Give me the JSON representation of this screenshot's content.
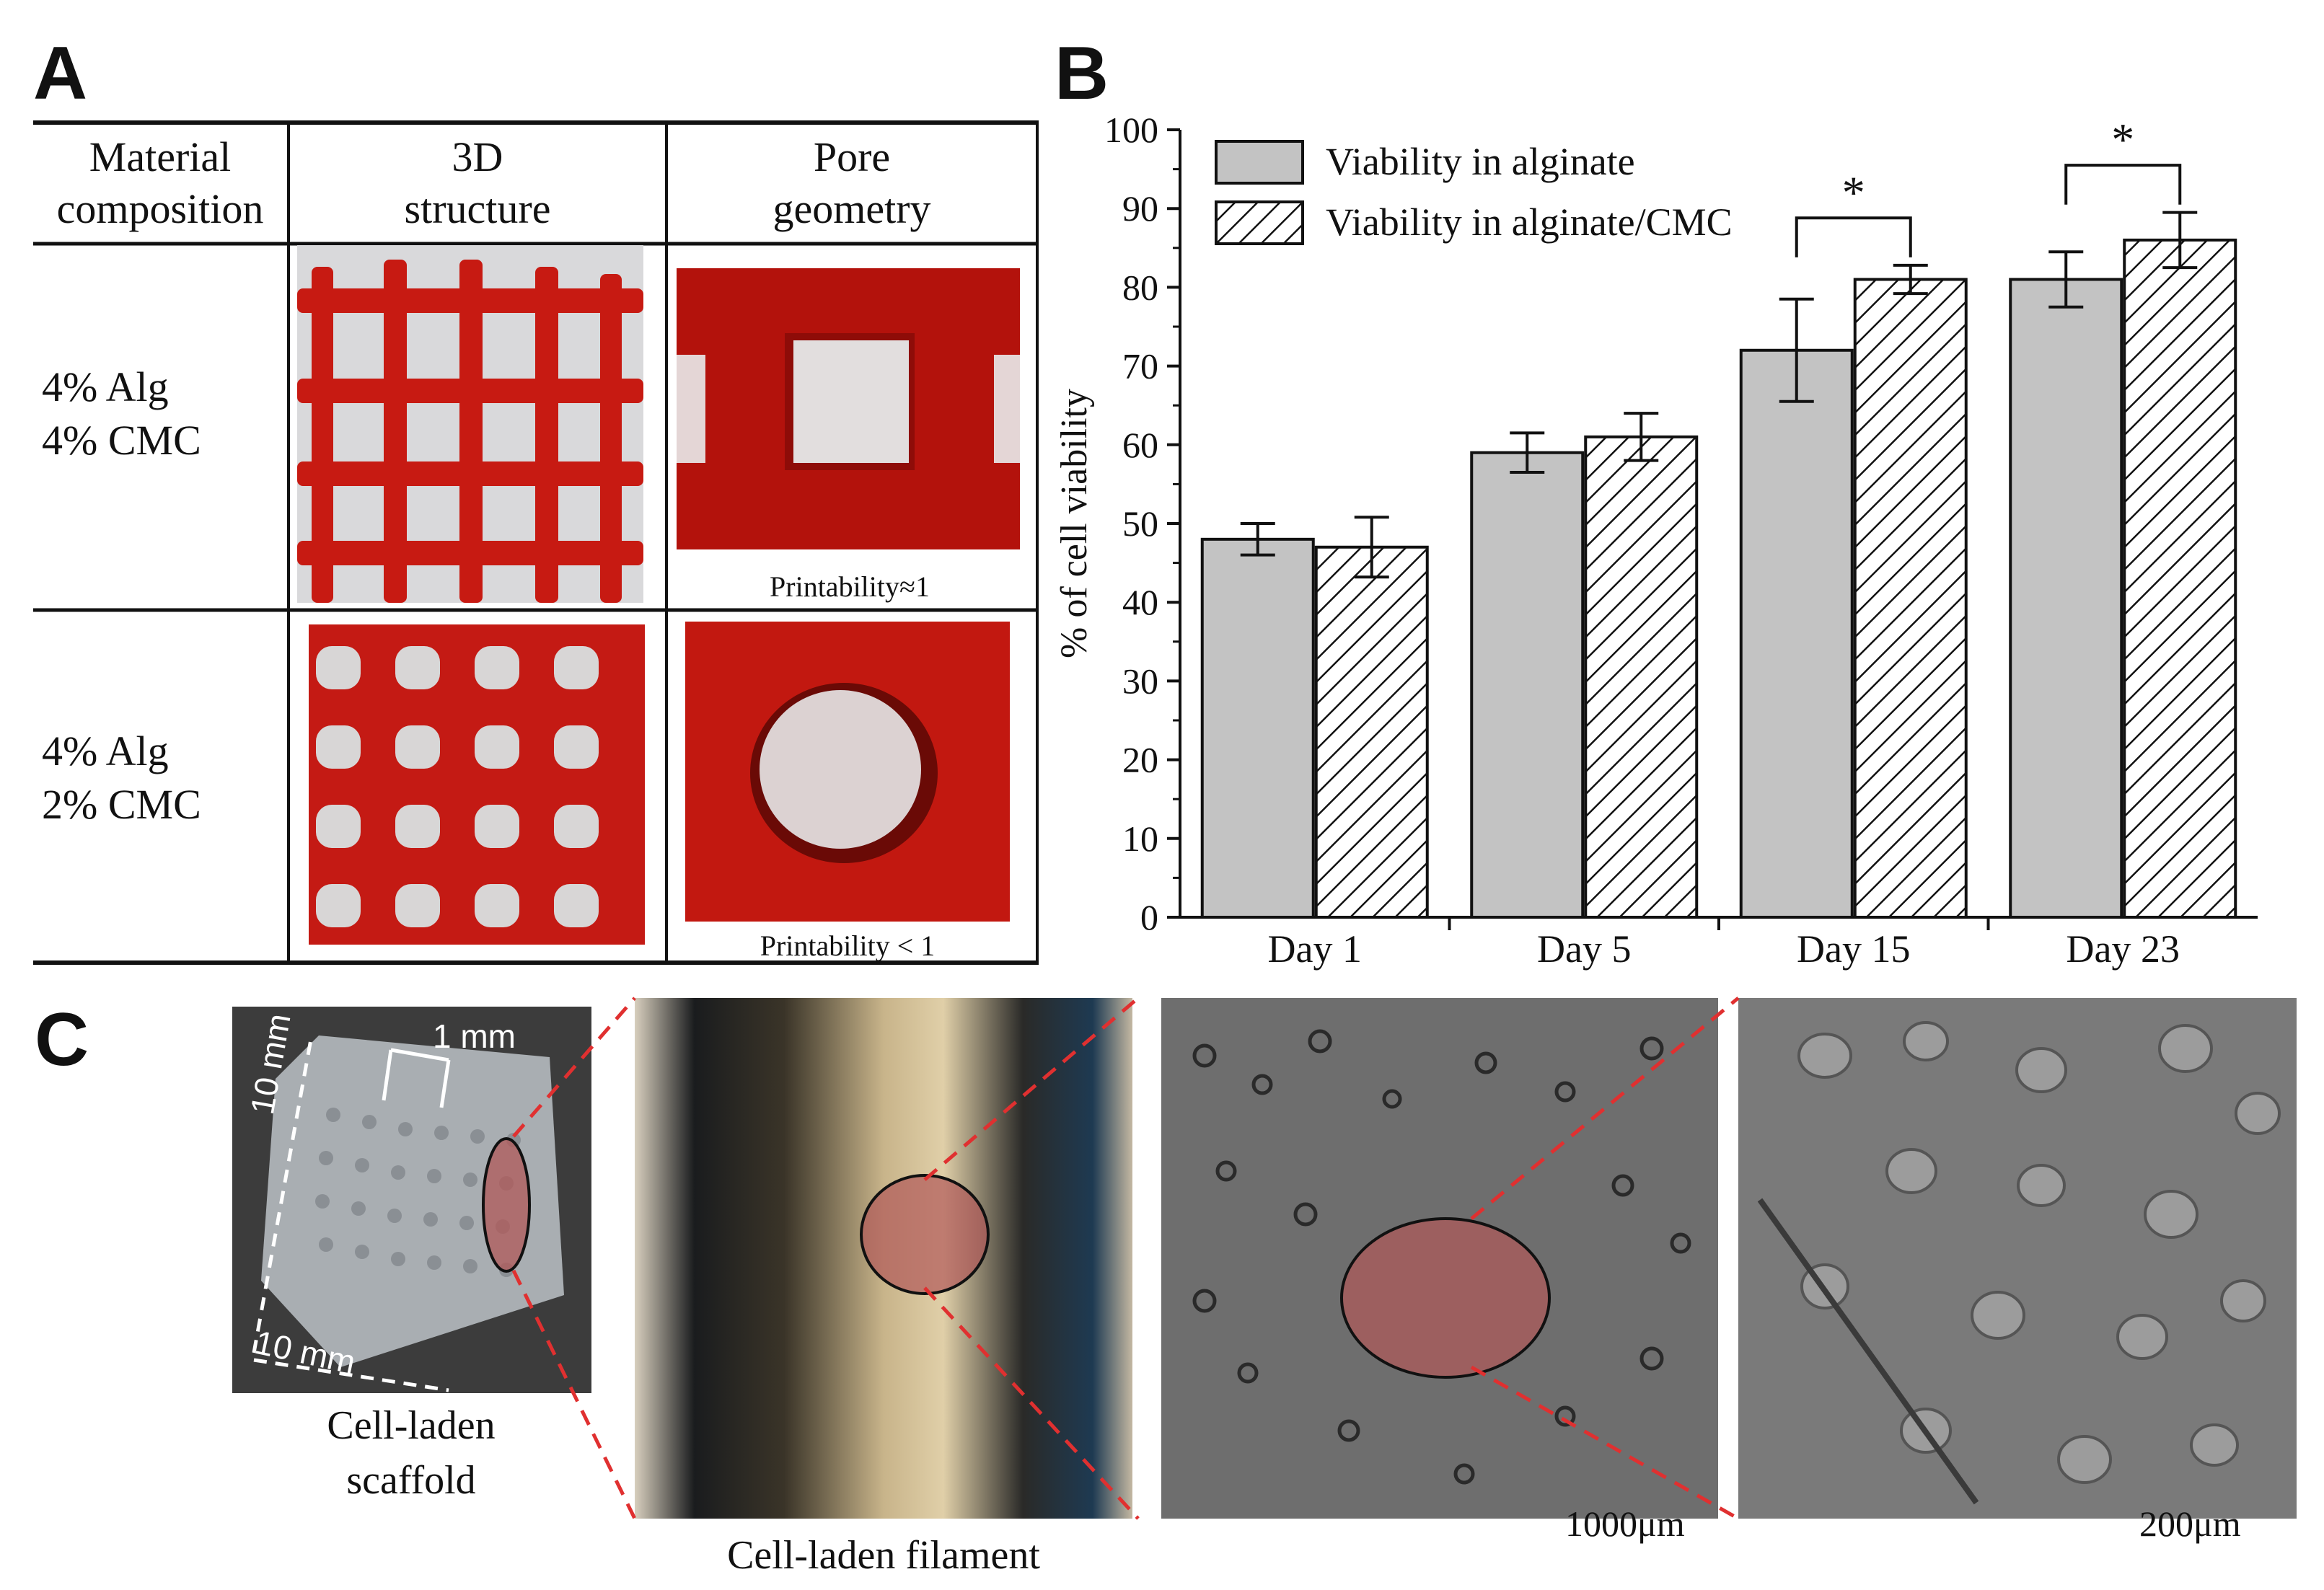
{
  "panels": {
    "a": "A",
    "b": "B",
    "c": "C"
  },
  "table": {
    "headers": [
      "Material\ncomposition",
      "3D\nstructure",
      "Pore\ngeometry"
    ],
    "rows": [
      {
        "composition": "4% Alg\n4% CMC",
        "caption": "Printability≈1"
      },
      {
        "composition": "4% Alg\n2% CMC",
        "caption": "Printability < 1"
      }
    ]
  },
  "chart_data": {
    "type": "bar",
    "categories": [
      "Day 1",
      "Day 5",
      "Day 15",
      "Day 23"
    ],
    "series": [
      {
        "name": "Viability in alginate",
        "values": [
          48,
          59,
          72,
          81
        ],
        "errors": [
          2,
          2.5,
          6.5,
          3.5
        ],
        "pattern": "solid",
        "color": "#c3c3c3"
      },
      {
        "name": "Viability in alginate/CMC",
        "values": [
          47,
          61,
          81,
          86
        ],
        "errors": [
          3.8,
          3,
          1.8,
          3.5
        ],
        "pattern": "hatched",
        "color": "#ffffff"
      }
    ],
    "ylabel": "% of cell viability",
    "ylim": [
      0,
      100
    ],
    "yticks": [
      0,
      10,
      20,
      30,
      40,
      50,
      60,
      70,
      80,
      90,
      100
    ],
    "legend_position": "top-left",
    "significance": [
      {
        "category": "Day 15",
        "label": "*"
      },
      {
        "category": "Day 23",
        "label": "*"
      }
    ]
  },
  "scaffold": {
    "dim_top": "1 mm",
    "dim_left": "10 mm",
    "dim_bottom": "10 mm",
    "label": "Cell-laden\nscaffold"
  },
  "filament": {
    "label": "Cell-laden filament"
  },
  "micrographs": [
    {
      "scale": "1000μm"
    },
    {
      "scale": "200μm"
    }
  ],
  "colors": {
    "highlight": "#b05858",
    "dash": "#e03030",
    "red": "#c01818"
  }
}
